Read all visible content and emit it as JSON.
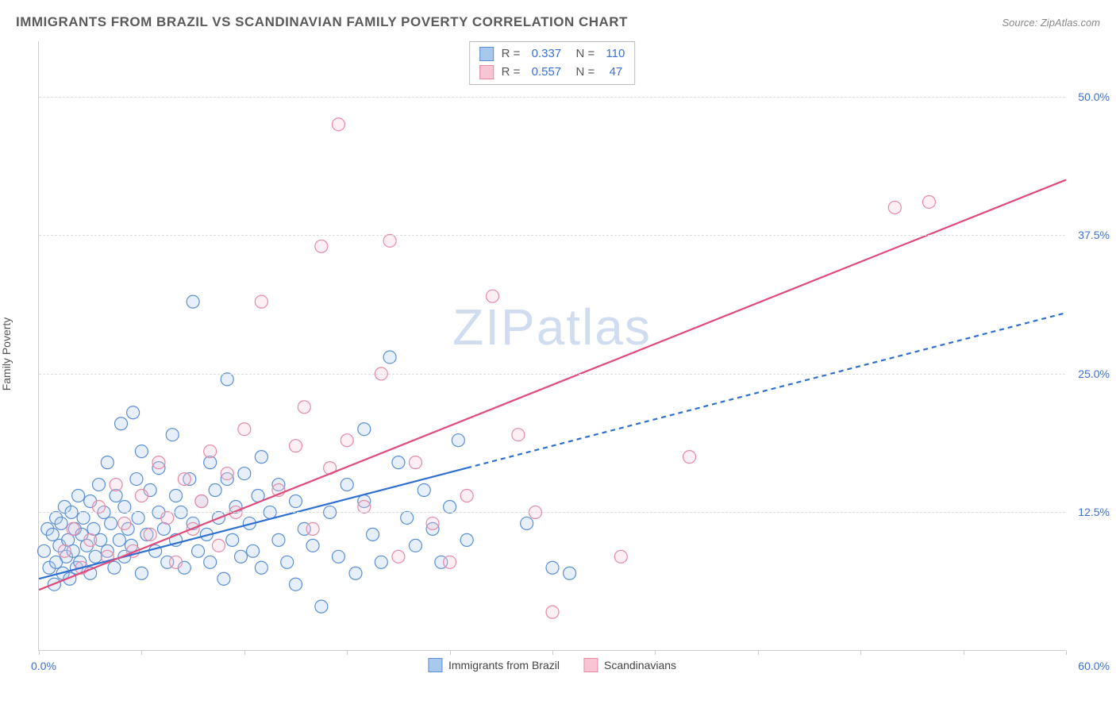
{
  "title": "IMMIGRANTS FROM BRAZIL VS SCANDINAVIAN FAMILY POVERTY CORRELATION CHART",
  "source": "Source: ZipAtlas.com",
  "y_axis_label": "Family Poverty",
  "watermark_left": "ZIP",
  "watermark_right": "atlas",
  "chart": {
    "type": "scatter",
    "xlim": [
      0,
      60
    ],
    "ylim": [
      0,
      55
    ],
    "x_origin_label": "0.0%",
    "x_max_label": "60.0%",
    "x_ticks": [
      0,
      6,
      12,
      18,
      24,
      30,
      36,
      42,
      48,
      54,
      60
    ],
    "y_gridlines": [
      12.5,
      25.0,
      37.5,
      50.0
    ],
    "y_tick_labels": [
      "12.5%",
      "25.0%",
      "37.5%",
      "50.0%"
    ],
    "background_color": "#ffffff",
    "grid_color": "#dddddd",
    "axis_color": "#cccccc",
    "tick_label_color": "#3b6fd6",
    "marker_radius": 8,
    "marker_stroke_width": 1.2,
    "marker_fill_opacity": 0.28,
    "series": [
      {
        "key": "brazil",
        "label": "Immigrants from Brazil",
        "color_stroke": "#5a8fd6",
        "color_fill": "#a8c8ec",
        "r": "0.337",
        "n": "110",
        "trend": {
          "x1": 0,
          "y1": 6.5,
          "x2": 25,
          "y2": 16.5,
          "extend_x2": 60,
          "extend_y2": 30.5,
          "stroke": "#2f6fd1",
          "width": 2.2,
          "dash_extend": "6 5"
        },
        "points": [
          [
            0.3,
            9
          ],
          [
            0.5,
            11
          ],
          [
            0.6,
            7.5
          ],
          [
            0.8,
            10.5
          ],
          [
            0.9,
            6
          ],
          [
            1.0,
            12
          ],
          [
            1.0,
            8
          ],
          [
            1.2,
            9.5
          ],
          [
            1.3,
            11.5
          ],
          [
            1.4,
            7
          ],
          [
            1.5,
            13
          ],
          [
            1.6,
            8.5
          ],
          [
            1.7,
            10
          ],
          [
            1.8,
            6.5
          ],
          [
            1.9,
            12.5
          ],
          [
            2.0,
            9
          ],
          [
            2.1,
            11
          ],
          [
            2.2,
            7.5
          ],
          [
            2.3,
            14
          ],
          [
            2.4,
            8
          ],
          [
            2.5,
            10.5
          ],
          [
            2.6,
            12
          ],
          [
            2.8,
            9.5
          ],
          [
            3.0,
            7
          ],
          [
            3.0,
            13.5
          ],
          [
            3.2,
            11
          ],
          [
            3.3,
            8.5
          ],
          [
            3.5,
            15
          ],
          [
            3.6,
            10
          ],
          [
            3.8,
            12.5
          ],
          [
            4.0,
            9
          ],
          [
            4.0,
            17
          ],
          [
            4.2,
            11.5
          ],
          [
            4.4,
            7.5
          ],
          [
            4.5,
            14
          ],
          [
            4.7,
            10
          ],
          [
            4.8,
            20.5
          ],
          [
            5.0,
            8.5
          ],
          [
            5.0,
            13
          ],
          [
            5.2,
            11
          ],
          [
            5.4,
            9.5
          ],
          [
            5.5,
            21.5
          ],
          [
            5.7,
            15.5
          ],
          [
            5.8,
            12
          ],
          [
            6.0,
            7
          ],
          [
            6.0,
            18
          ],
          [
            6.3,
            10.5
          ],
          [
            6.5,
            14.5
          ],
          [
            6.8,
            9
          ],
          [
            7.0,
            12.5
          ],
          [
            7.0,
            16.5
          ],
          [
            7.3,
            11
          ],
          [
            7.5,
            8
          ],
          [
            7.8,
            19.5
          ],
          [
            8.0,
            14
          ],
          [
            8.0,
            10
          ],
          [
            8.3,
            12.5
          ],
          [
            8.5,
            7.5
          ],
          [
            8.8,
            15.5
          ],
          [
            9.0,
            11.5
          ],
          [
            9.0,
            31.5
          ],
          [
            9.3,
            9
          ],
          [
            9.5,
            13.5
          ],
          [
            9.8,
            10.5
          ],
          [
            10.0,
            17
          ],
          [
            10.0,
            8
          ],
          [
            10.3,
            14.5
          ],
          [
            10.5,
            12
          ],
          [
            10.8,
            6.5
          ],
          [
            11.0,
            15.5
          ],
          [
            11.0,
            24.5
          ],
          [
            11.3,
            10
          ],
          [
            11.5,
            13
          ],
          [
            11.8,
            8.5
          ],
          [
            12.0,
            16
          ],
          [
            12.3,
            11.5
          ],
          [
            12.5,
            9
          ],
          [
            12.8,
            14
          ],
          [
            13.0,
            7.5
          ],
          [
            13.0,
            17.5
          ],
          [
            13.5,
            12.5
          ],
          [
            14.0,
            10
          ],
          [
            14.0,
            15
          ],
          [
            14.5,
            8
          ],
          [
            15.0,
            13.5
          ],
          [
            15.0,
            6
          ],
          [
            15.5,
            11
          ],
          [
            16.0,
            9.5
          ],
          [
            16.5,
            4
          ],
          [
            17.0,
            12.5
          ],
          [
            17.5,
            8.5
          ],
          [
            18.0,
            15
          ],
          [
            18.5,
            7
          ],
          [
            19.0,
            13.5
          ],
          [
            19.0,
            20
          ],
          [
            19.5,
            10.5
          ],
          [
            20.0,
            8
          ],
          [
            20.5,
            26.5
          ],
          [
            21.0,
            17
          ],
          [
            21.5,
            12
          ],
          [
            22.0,
            9.5
          ],
          [
            22.5,
            14.5
          ],
          [
            23.0,
            11
          ],
          [
            23.5,
            8
          ],
          [
            24.0,
            13
          ],
          [
            24.5,
            19
          ],
          [
            25.0,
            10
          ],
          [
            28.5,
            11.5
          ],
          [
            30.0,
            7.5
          ],
          [
            31.0,
            7
          ]
        ]
      },
      {
        "key": "scand",
        "label": "Scandinavians",
        "color_stroke": "#e58aa5",
        "color_fill": "#f7c5d4",
        "r": "0.557",
        "n": "47",
        "trend": {
          "x1": 0,
          "y1": 5.5,
          "x2": 60,
          "y2": 42.5,
          "stroke": "#e14b7a",
          "width": 2.2
        },
        "points": [
          [
            1.5,
            9
          ],
          [
            2.0,
            11
          ],
          [
            2.5,
            7.5
          ],
          [
            3.0,
            10
          ],
          [
            3.5,
            13
          ],
          [
            4.0,
            8.5
          ],
          [
            4.5,
            15
          ],
          [
            5.0,
            11.5
          ],
          [
            5.5,
            9
          ],
          [
            6.0,
            14
          ],
          [
            6.5,
            10.5
          ],
          [
            7.0,
            17
          ],
          [
            7.5,
            12
          ],
          [
            8.0,
            8
          ],
          [
            8.5,
            15.5
          ],
          [
            9.0,
            11
          ],
          [
            9.5,
            13.5
          ],
          [
            10.0,
            18
          ],
          [
            10.5,
            9.5
          ],
          [
            11.0,
            16
          ],
          [
            11.5,
            12.5
          ],
          [
            12.0,
            20
          ],
          [
            13.0,
            31.5
          ],
          [
            14.0,
            14.5
          ],
          [
            15.0,
            18.5
          ],
          [
            15.5,
            22
          ],
          [
            16.0,
            11
          ],
          [
            16.5,
            36.5
          ],
          [
            17.0,
            16.5
          ],
          [
            17.5,
            47.5
          ],
          [
            18.0,
            19
          ],
          [
            19.0,
            13
          ],
          [
            20.0,
            25
          ],
          [
            20.5,
            37
          ],
          [
            21.0,
            8.5
          ],
          [
            22.0,
            17
          ],
          [
            23.0,
            11.5
          ],
          [
            24.0,
            8
          ],
          [
            25.0,
            14
          ],
          [
            26.5,
            32
          ],
          [
            28.0,
            19.5
          ],
          [
            29.0,
            12.5
          ],
          [
            30.0,
            3.5
          ],
          [
            34.0,
            8.5
          ],
          [
            38.0,
            17.5
          ],
          [
            50.0,
            40
          ],
          [
            52.0,
            40.5
          ]
        ]
      }
    ],
    "bottom_legend": [
      {
        "label": "Immigrants from Brazil",
        "fill": "#a8c8ec",
        "stroke": "#5a8fd6"
      },
      {
        "label": "Scandinavians",
        "fill": "#f7c5d4",
        "stroke": "#e58aa5"
      }
    ]
  }
}
